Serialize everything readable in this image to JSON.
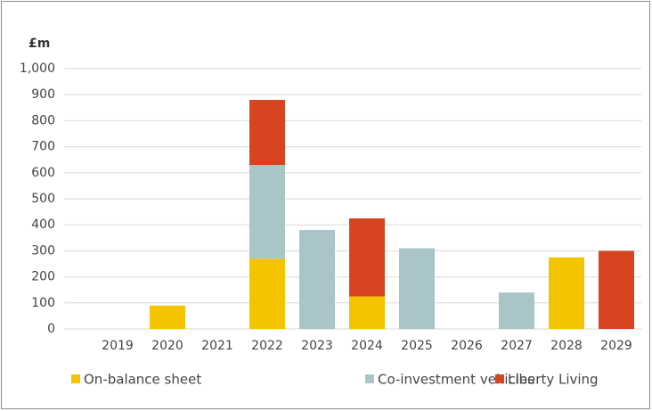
{
  "chart_data": {
    "type": "stacked_bar",
    "title": "£m",
    "categories": [
      "2019",
      "2020",
      "2021",
      "2022",
      "2023",
      "2024",
      "2025",
      "2026",
      "2027",
      "2028",
      "2029"
    ],
    "series": [
      {
        "name": "On-balance sheet",
        "color": "#f5c400",
        "values": [
          0,
          90,
          0,
          270,
          0,
          125,
          0,
          0,
          0,
          275,
          0
        ]
      },
      {
        "name": "Co-investment vehicles",
        "color": "#a9c5c7",
        "values": [
          0,
          0,
          0,
          360,
          380,
          0,
          310,
          0,
          140,
          0,
          0
        ]
      },
      {
        "name": "Liberty Living",
        "color": "#d6451f",
        "values": [
          0,
          0,
          0,
          250,
          0,
          300,
          0,
          0,
          0,
          0,
          300
        ]
      }
    ],
    "ylim": [
      0,
      1000
    ],
    "yticks": [
      0,
      100,
      200,
      300,
      400,
      500,
      600,
      700,
      800,
      900,
      {
        "value": 1000,
        "label": "1,000"
      }
    ],
    "grid": true,
    "legend": "bottom"
  }
}
